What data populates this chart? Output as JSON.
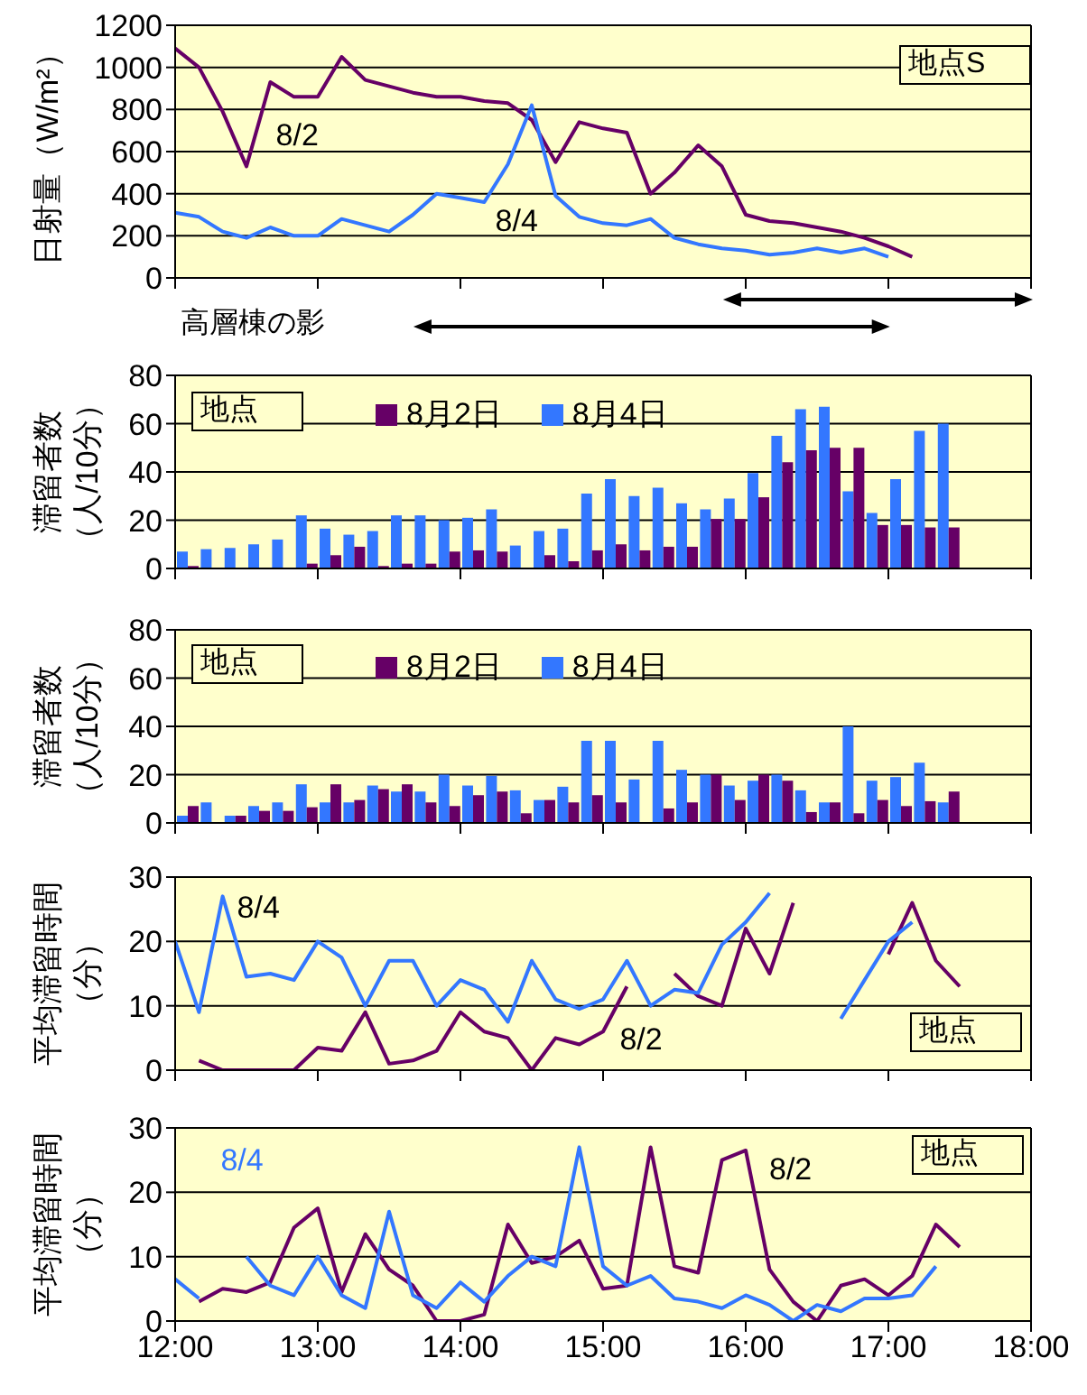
{
  "chart_data": [
    {
      "type": "line",
      "ylabel": "日射量（W/m²）",
      "x": [
        12,
        12.167,
        12.333,
        12.5,
        12.667,
        12.833,
        13,
        13.167,
        13.333,
        13.5,
        13.667,
        13.833,
        14,
        14.167,
        14.333,
        14.5,
        14.667,
        14.833,
        15,
        15.167,
        15.333,
        15.5,
        15.667,
        15.833,
        16,
        16.167,
        16.333,
        16.5,
        16.667,
        16.833,
        17,
        17.167
      ],
      "series": [
        {
          "name": "8/2",
          "color": "#660066",
          "values": [
            1090,
            1000,
            790,
            530,
            930,
            860,
            860,
            1050,
            940,
            910,
            880,
            860,
            860,
            840,
            830,
            750,
            550,
            740,
            710,
            690,
            400,
            500,
            630,
            530,
            300,
            270,
            260,
            240,
            220,
            190,
            150,
            100
          ]
        },
        {
          "name": "8/4",
          "color": "#3377ff",
          "values": [
            310,
            290,
            220,
            190,
            240,
            200,
            200,
            280,
            250,
            220,
            300,
            400,
            380,
            360,
            540,
            820,
            390,
            290,
            260,
            250,
            280,
            190,
            160,
            140,
            130,
            110,
            120,
            140,
            120,
            140,
            100,
            null
          ]
        }
      ],
      "xlim": [
        12,
        18
      ],
      "xticks": [
        12,
        13,
        14,
        15,
        16,
        17,
        18
      ],
      "ylim": [
        0,
        1200
      ],
      "yticks": [
        0,
        200,
        400,
        600,
        800,
        1000,
        1200
      ],
      "grid": "y",
      "tick_labels": "y",
      "annotations": [
        "地点S",
        "高層棟の影"
      ]
    },
    {
      "type": "bar",
      "ylabel": "滞留者数（人/10分）",
      "x": [
        12.083,
        12.25,
        12.417,
        12.583,
        12.75,
        12.917,
        13.083,
        13.25,
        13.417,
        13.583,
        13.75,
        13.917,
        14.083,
        14.25,
        14.417,
        14.583,
        14.75,
        14.917,
        15.083,
        15.25,
        15.417,
        15.583,
        15.75,
        15.917,
        16.083,
        16.25,
        16.417,
        16.583,
        16.75,
        16.917,
        17.083,
        17.25,
        17.417
      ],
      "series": [
        {
          "name": "8月2日",
          "color": "#660066",
          "values": [
            1,
            0,
            0,
            0,
            0,
            2,
            5.5,
            9,
            1,
            2,
            2,
            7,
            7.5,
            7,
            0,
            5.5,
            3,
            7.5,
            10,
            7.5,
            9,
            9,
            20.5,
            20.5,
            29.5,
            44,
            49,
            50,
            50,
            18,
            18,
            17,
            17
          ]
        },
        {
          "name": "8月4日",
          "color": "#3377ff",
          "values": [
            7,
            8,
            8.5,
            10,
            12,
            22,
            16.5,
            14,
            15.5,
            22,
            22,
            20,
            21,
            24.5,
            9.5,
            15.5,
            16.5,
            31,
            37,
            30,
            33.5,
            27,
            24.5,
            29,
            39.5,
            55,
            66,
            67,
            32,
            23,
            37,
            57,
            60
          ]
        }
      ],
      "xlim": [
        12,
        18
      ],
      "xticks": [
        12,
        13,
        14,
        15,
        16,
        17,
        18
      ],
      "ylim": [
        0,
        80
      ],
      "yticks": [
        0,
        20,
        40,
        60,
        80
      ],
      "grid": "y",
      "tick_labels": "y",
      "legend": "top",
      "annotations": [
        "地点"
      ]
    },
    {
      "type": "bar",
      "ylabel": "滞留者数（人/10分）",
      "x": [
        12.083,
        12.25,
        12.417,
        12.583,
        12.75,
        12.917,
        13.083,
        13.25,
        13.417,
        13.583,
        13.75,
        13.917,
        14.083,
        14.25,
        14.417,
        14.583,
        14.75,
        14.917,
        15.083,
        15.25,
        15.417,
        15.583,
        15.75,
        15.917,
        16.083,
        16.25,
        16.417,
        16.583,
        16.75,
        16.917,
        17.083,
        17.25,
        17.417
      ],
      "series": [
        {
          "name": "8月2日",
          "color": "#660066",
          "values": [
            7,
            0,
            3,
            5,
            5,
            6.5,
            16,
            9.5,
            14,
            16,
            8.5,
            7,
            11.5,
            13,
            4,
            9.5,
            8.5,
            11.5,
            8.5,
            0,
            6,
            8.5,
            20,
            9.5,
            20,
            17.5,
            4.5,
            8.5,
            4,
            9.5,
            7,
            9,
            13
          ]
        },
        {
          "name": "8月4日",
          "color": "#3377ff",
          "values": [
            3,
            8.5,
            3,
            7,
            8.5,
            16,
            8.5,
            8.5,
            15.5,
            13,
            13,
            20,
            15.5,
            19.5,
            13.5,
            9.5,
            15,
            34,
            34,
            18,
            34,
            22,
            20,
            15.5,
            17.5,
            20,
            13.5,
            8.5,
            40,
            17.5,
            19,
            25,
            8.5
          ]
        }
      ],
      "xlim": [
        12,
        18
      ],
      "xticks": [
        12,
        13,
        14,
        15,
        16,
        17,
        18
      ],
      "ylim": [
        0,
        80
      ],
      "yticks": [
        0,
        20,
        40,
        60,
        80
      ],
      "grid": "y",
      "tick_labels": "y",
      "legend": "top",
      "annotations": [
        "地点"
      ]
    },
    {
      "type": "line",
      "ylabel": "平均滞留時間（分）",
      "x": [
        12,
        12.167,
        12.333,
        12.5,
        12.667,
        12.833,
        13,
        13.167,
        13.333,
        13.5,
        13.667,
        13.833,
        14,
        14.167,
        14.333,
        14.5,
        14.667,
        14.833,
        15,
        15.167,
        15.333,
        15.5,
        15.667,
        15.833,
        16,
        16.167,
        16.333,
        16.5,
        16.667,
        16.833,
        17,
        17.167,
        17.333,
        17.5
      ],
      "series": [
        {
          "name": "8/2",
          "color": "#660066",
          "values": [
            null,
            1.5,
            0,
            0,
            0,
            0,
            3.5,
            3,
            9,
            1,
            1.5,
            3,
            9,
            6,
            5,
            0,
            5,
            4,
            6,
            13,
            null,
            15,
            11.5,
            10,
            22,
            15,
            26,
            null,
            null,
            null,
            18,
            26,
            17,
            13
          ]
        },
        {
          "name": "8/4",
          "color": "#3377ff",
          "values": [
            20,
            9,
            27,
            14.5,
            15,
            14,
            20,
            17.5,
            10,
            17,
            17,
            10,
            14,
            12.5,
            7.5,
            17,
            11,
            9.5,
            11,
            17,
            10,
            12.5,
            12,
            19.5,
            23,
            27.5,
            null,
            null,
            8,
            14,
            20,
            23,
            null,
            null
          ]
        }
      ],
      "xlim": [
        12,
        18
      ],
      "xticks": [
        12,
        13,
        14,
        15,
        16,
        17,
        18
      ],
      "ylim": [
        0,
        30
      ],
      "yticks": [
        0,
        10,
        20,
        30
      ],
      "grid": "y",
      "tick_labels": "y",
      "annotations": [
        "地点"
      ]
    },
    {
      "type": "line",
      "ylabel": "平均滞留時間（分）",
      "x": [
        12,
        12.167,
        12.333,
        12.5,
        12.667,
        12.833,
        13,
        13.167,
        13.333,
        13.5,
        13.667,
        13.833,
        14,
        14.167,
        14.333,
        14.5,
        14.667,
        14.833,
        15,
        15.167,
        15.333,
        15.5,
        15.667,
        15.833,
        16,
        16.167,
        16.333,
        16.5,
        16.667,
        16.833,
        17,
        17.167,
        17.333,
        17.5
      ],
      "series": [
        {
          "name": "8/2",
          "color": "#660066",
          "values": [
            null,
            3,
            5,
            4.5,
            6,
            14.5,
            17.5,
            4.5,
            13.5,
            8,
            5.5,
            0,
            0,
            1,
            15,
            9,
            10,
            12.5,
            5,
            5.5,
            27,
            8.5,
            7.5,
            25,
            26.5,
            8,
            3,
            0,
            5.5,
            6.5,
            4,
            7,
            15,
            11.5
          ]
        },
        {
          "name": "8/4",
          "color": "#3377ff",
          "values": [
            6.5,
            3.5,
            null,
            10,
            5.5,
            4,
            10,
            4,
            2,
            17,
            4,
            2,
            6,
            3,
            7,
            10,
            8.5,
            27,
            8.5,
            5.5,
            7,
            3.5,
            3,
            2,
            4,
            2.5,
            0,
            2.5,
            1.5,
            3.5,
            3.5,
            4,
            8.5,
            null
          ]
        }
      ],
      "xlim": [
        12,
        18
      ],
      "xticks": [
        {
          "value": 12,
          "label": "12:00"
        },
        {
          "value": 13,
          "label": "13:00"
        },
        {
          "value": 14,
          "label": "14:00"
        },
        {
          "value": 15,
          "label": "15:00"
        },
        {
          "value": 16,
          "label": "16:00"
        },
        {
          "value": 17,
          "label": "17:00"
        },
        {
          "value": 18,
          "label": "18:00"
        }
      ],
      "ylim": [
        0,
        30
      ],
      "yticks": [
        0,
        10,
        20,
        30
      ],
      "grid": "y",
      "annotations": [
        "地点"
      ]
    }
  ]
}
